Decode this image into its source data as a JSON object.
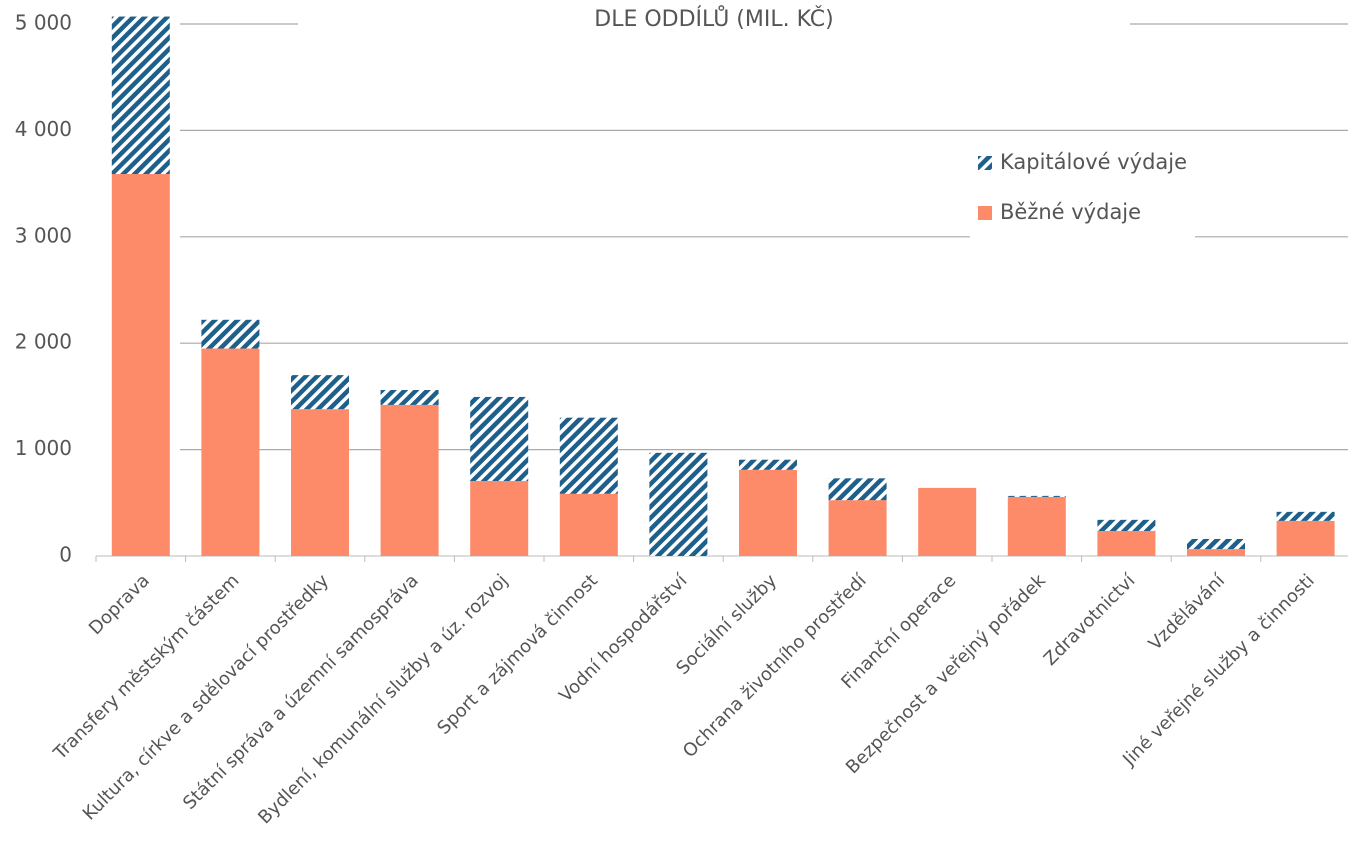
{
  "chart_data": {
    "type": "stacked_bar",
    "title": "DLE ODDÍLŮ (MIL. KČ)",
    "categories": [
      "Doprava",
      "Transfery městským částem",
      "Kultura, církve a sdělovací prostředky",
      "Státní správa a územní samospráva",
      "Bydlení, komunální služby a úz. rozvoj",
      "Sport a zájmová činnost",
      "Vodní hospodářství",
      "Sociální služby",
      "Ochrana životního prostředí",
      "Finanční operace",
      "Bezpečnost a veřejný pořádek",
      "Zdravotnictví",
      "Vzdělávání",
      "Jiné veřejné služby a činnosti"
    ],
    "series": [
      {
        "name": "Běžné výdaje",
        "color": "#fd8a69",
        "pattern": "solid",
        "values": [
          3590,
          1950,
          1380,
          1420,
          705,
          585,
          0,
          810,
          525,
          640,
          555,
          235,
          65,
          330
        ]
      },
      {
        "name": "Kapitálové výdaje",
        "color": "#1f5f8b",
        "pattern": "hatch",
        "values": [
          1480,
          270,
          320,
          140,
          790,
          715,
          970,
          95,
          205,
          0,
          10,
          105,
          95,
          85
        ]
      }
    ],
    "ylim": [
      0,
      5000
    ],
    "yticks": [
      0,
      {
        "value": 1000,
        "label": "1 000"
      },
      {
        "value": 2000,
        "label": "2 000"
      },
      {
        "value": 3000,
        "label": "3 000"
      },
      {
        "value": 4000,
        "label": "4 000"
      },
      {
        "value": 5000,
        "label": "5 000"
      }
    ],
    "grid": true,
    "legend": "upper right"
  }
}
